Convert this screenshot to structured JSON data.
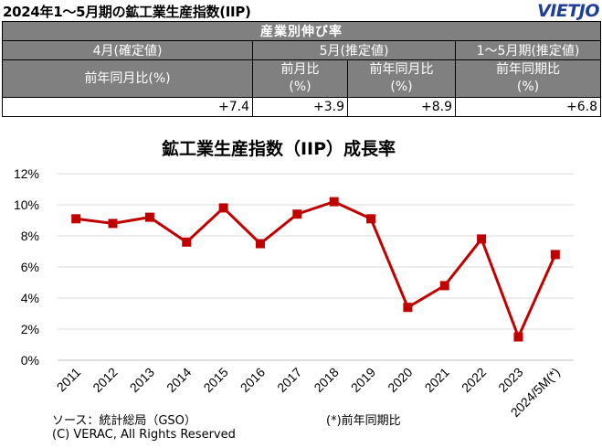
{
  "header": {
    "title": "2024年1～5月期の鉱工業生産指数(IIP)",
    "logo": "VIETJO"
  },
  "table": {
    "caption": "産業別伸び率",
    "groups": [
      "4月(確定値)",
      "5月(推定値)",
      "1～5月期(推定値)"
    ],
    "subheaders": [
      "前年同月比(%)",
      "前月比\n(%)",
      "前年同月比\n(%)",
      "前年同期比\n(%)"
    ],
    "values": [
      "+7.4",
      "+3.9",
      "+8.9",
      "+6.8"
    ]
  },
  "chart_data": {
    "type": "line",
    "title": "鉱工業生産指数（IIP）成長率",
    "categories": [
      "2011",
      "2012",
      "2013",
      "2014",
      "2015",
      "2016",
      "2017",
      "2018",
      "2019",
      "2020",
      "2021",
      "2022",
      "2023",
      "2024/5M(*)"
    ],
    "series": [
      {
        "values": [
          9.1,
          8.8,
          9.2,
          7.6,
          9.8,
          7.5,
          9.4,
          10.2,
          9.1,
          3.4,
          4.8,
          7.8,
          1.5,
          6.8
        ]
      }
    ],
    "ylim": [
      0,
      12
    ],
    "yticks": [
      "0%",
      "2%",
      "4%",
      "6%",
      "8%",
      "10%",
      "12%"
    ],
    "grid": true,
    "color": "#c00000"
  },
  "footer": {
    "source": "ソース：統計総局（GSO）",
    "note": "(*)前年同期比",
    "copyright": "(C) VERAC, All Rights Reserved"
  }
}
